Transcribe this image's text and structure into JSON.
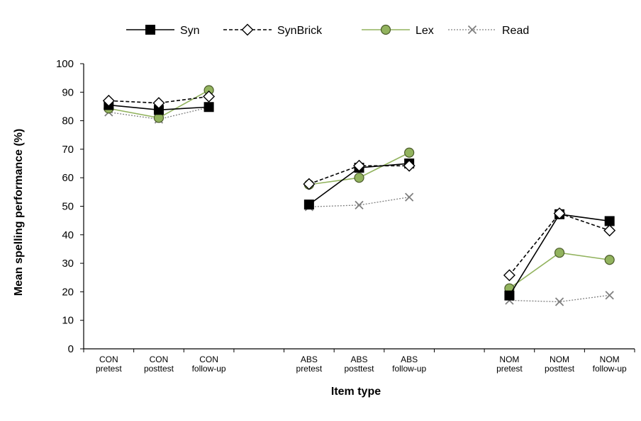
{
  "chart_data": {
    "type": "line",
    "xlabel": "Item type",
    "ylabel": "Mean spelling performance (%)",
    "ylim": [
      0,
      100
    ],
    "yticks": [
      0,
      10,
      20,
      30,
      40,
      50,
      60,
      70,
      80,
      90,
      100
    ],
    "legend_position": "top",
    "grid": false,
    "groups": [
      {
        "name": "CON",
        "categories": [
          [
            "CON",
            "pretest"
          ],
          [
            "CON",
            "posttest"
          ],
          [
            "CON",
            "follow-up"
          ]
        ]
      },
      {
        "name": "ABS",
        "categories": [
          [
            "ABS",
            "pretest"
          ],
          [
            "ABS",
            "posttest"
          ],
          [
            "ABS",
            "follow-up"
          ]
        ]
      },
      {
        "name": "NOM",
        "categories": [
          [
            "NOM",
            "pretest"
          ],
          [
            "NOM",
            "posttest"
          ],
          [
            "NOM",
            "follow-up"
          ]
        ]
      }
    ],
    "series": [
      {
        "name": "Syn",
        "color": "#000000",
        "dash": "solid",
        "marker": "square",
        "values": [
          [
            85.5,
            83.8,
            84.8
          ],
          [
            50.6,
            63.5,
            65.0
          ],
          [
            18.7,
            47.2,
            44.8
          ]
        ]
      },
      {
        "name": "SynBrick",
        "color": "#000000",
        "dash": "dashed",
        "marker": "diamond",
        "values": [
          [
            87.0,
            86.2,
            88.5
          ],
          [
            57.8,
            64.2,
            64.2
          ],
          [
            25.8,
            47.5,
            41.5
          ]
        ]
      },
      {
        "name": "Lex",
        "color": "#92b35e",
        "dash": "solid",
        "marker": "circle",
        "values": [
          [
            84.3,
            81.0,
            90.7
          ],
          [
            57.6,
            60.0,
            68.8
          ],
          [
            21.2,
            33.7,
            31.2
          ]
        ]
      },
      {
        "name": "Read",
        "color": "#808080",
        "dash": "dotted",
        "marker": "x",
        "values": [
          [
            83.0,
            80.5,
            84.7
          ],
          [
            49.8,
            50.4,
            53.2
          ],
          [
            17.0,
            16.5,
            18.8
          ]
        ]
      }
    ]
  }
}
